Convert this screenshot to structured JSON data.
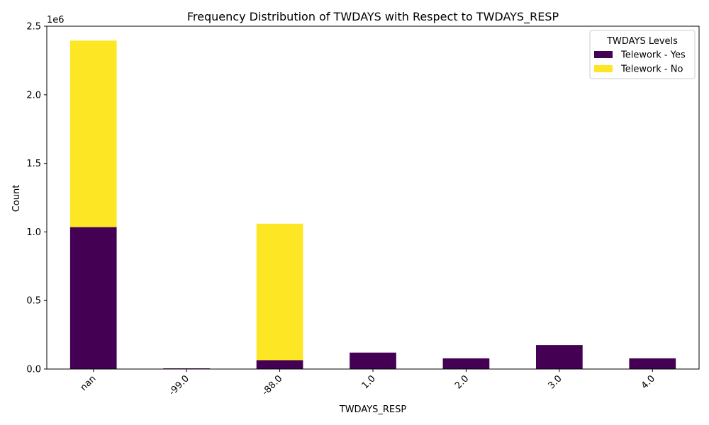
{
  "chart_data": {
    "type": "bar",
    "stacked": true,
    "title": "Frequency Distribution of TWDAYS with Respect to TWDAYS_RESP",
    "xlabel": "TWDAYS_RESP",
    "ylabel": "Count",
    "y_offset_label": "1e6",
    "ylim": [
      0,
      2500000
    ],
    "yticks": [
      0,
      500000,
      1000000,
      1500000,
      2000000,
      2500000
    ],
    "ytick_labels": [
      "0.0",
      "0.5",
      "1.0",
      "1.5",
      "2.0",
      "2.5"
    ],
    "categories": [
      "nan",
      "-99.0",
      "-88.0",
      "1.0",
      "2.0",
      "3.0",
      "4.0"
    ],
    "series": [
      {
        "name": "Telework - Yes",
        "color": "#440154",
        "values": [
          1035000,
          5000,
          65000,
          120000,
          78000,
          175000,
          78000
        ]
      },
      {
        "name": "Telework - No",
        "color": "#fde725",
        "values": [
          1360000,
          0,
          995000,
          0,
          0,
          0,
          0
        ]
      }
    ],
    "legend_title": "TWDAYS Levels",
    "legend_position": "top-right",
    "grid": false
  }
}
